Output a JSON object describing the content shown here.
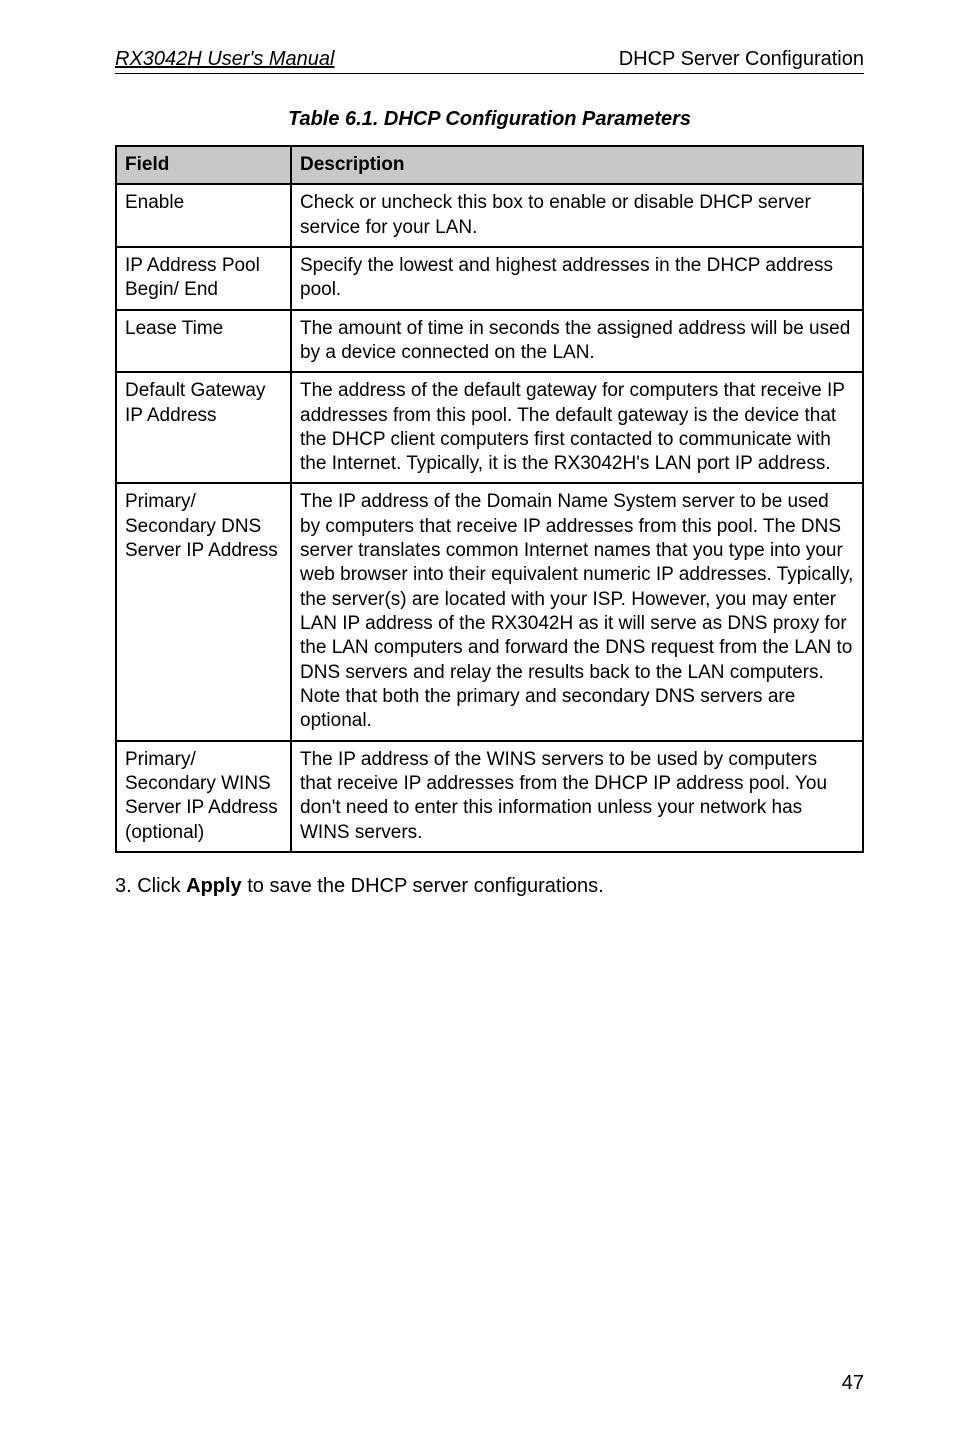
{
  "header": {
    "left": "RX3042H User's Manual",
    "right": "DHCP Server Configuration"
  },
  "caption": "Table 6.1. DHCP Configuration Parameters",
  "table": {
    "headers": {
      "field": "Field",
      "description": "Description"
    },
    "rows": [
      {
        "field": "Enable",
        "description": "Check or uncheck this box to enable or disable DHCP server service for your LAN."
      },
      {
        "field": "IP Address Pool Begin/ End",
        "description": "Specify the lowest and highest addresses in the DHCP address pool."
      },
      {
        "field": "Lease Time",
        "description": "The amount of time in seconds the assigned address will be used by a device connected on the LAN."
      },
      {
        "field": "Default Gateway IP Address",
        "description": "The address of the default gateway for computers that receive IP addresses from this pool. The default gateway is the device that the DHCP client computers first contacted to communicate with the Internet. Typically, it is the RX3042H's LAN port IP address."
      },
      {
        "field": "Primary/ Secondary DNS Server IP Address",
        "description": "The IP address of the Domain Name System server to be used by computers that receive IP addresses from this pool. The DNS server translates common Internet names that you type into your web browser into their equivalent numeric IP addresses. Typically, the server(s) are located with your ISP. However, you may enter LAN IP address of the RX3042H as it will serve as DNS proxy for the LAN computers and forward the DNS request from the LAN to DNS servers and relay the results back to the LAN computers. Note that both the primary and secondary DNS servers are optional."
      },
      {
        "field": "Primary/ Secondary WINS  Server IP Address (optional)",
        "description": "The IP address of the WINS servers to be used by computers that receive IP addresses from the DHCP IP address pool. You don't need to enter this information unless your network has WINS servers."
      }
    ]
  },
  "after": {
    "prefix": "3. Click ",
    "bold": "Apply",
    "suffix": " to save the DHCP server configurations."
  },
  "pageNumber": "47"
}
